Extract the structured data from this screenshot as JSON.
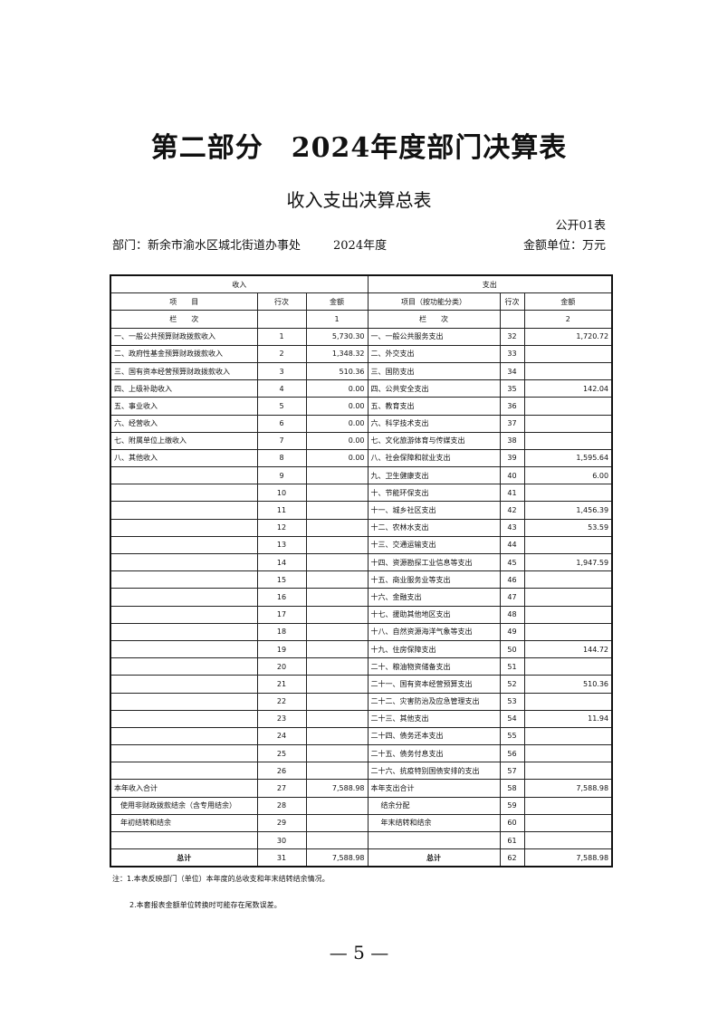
{
  "title": "第二部分　2024年度部门决算表",
  "subtitle": "收入支出决算总表",
  "form_no": "公开01表",
  "department": "部门：新余市渝水区城北街道办事处",
  "year": "2024年度",
  "unit": "金额单位：万元",
  "table": {
    "income_header": "收入",
    "expense_header": "支出",
    "col_item": "项　　目",
    "col_row": "行次",
    "col_amount": "金额",
    "col_item_func": "项目（按功能分类）",
    "lan_ci": "栏　　次",
    "col_no_1": "1",
    "col_no_2": "2",
    "rows": [
      {
        "in_item": "一、一般公共预算财政拨款收入",
        "in_no": "1",
        "in_amt": "5,730.30",
        "ex_item": "一、一般公共服务支出",
        "ex_no": "32",
        "ex_amt": "1,720.72"
      },
      {
        "in_item": "二、政府性基金预算财政拨款收入",
        "in_no": "2",
        "in_amt": "1,348.32",
        "ex_item": "二、外交支出",
        "ex_no": "33",
        "ex_amt": ""
      },
      {
        "in_item": "三、国有资本经营预算财政拨款收入",
        "in_no": "3",
        "in_amt": "510.36",
        "ex_item": "三、国防支出",
        "ex_no": "34",
        "ex_amt": ""
      },
      {
        "in_item": "四、上级补助收入",
        "in_no": "4",
        "in_amt": "0.00",
        "ex_item": "四、公共安全支出",
        "ex_no": "35",
        "ex_amt": "142.04"
      },
      {
        "in_item": "五、事业收入",
        "in_no": "5",
        "in_amt": "0.00",
        "ex_item": "五、教育支出",
        "ex_no": "36",
        "ex_amt": ""
      },
      {
        "in_item": "六、经营收入",
        "in_no": "6",
        "in_amt": "0.00",
        "ex_item": "六、科学技术支出",
        "ex_no": "37",
        "ex_amt": ""
      },
      {
        "in_item": "七、附属单位上缴收入",
        "in_no": "7",
        "in_amt": "0.00",
        "ex_item": "七、文化旅游体育与传媒支出",
        "ex_no": "38",
        "ex_amt": ""
      },
      {
        "in_item": "八、其他收入",
        "in_no": "8",
        "in_amt": "0.00",
        "ex_item": "八、社会保障和就业支出",
        "ex_no": "39",
        "ex_amt": "1,595.64"
      },
      {
        "in_item": "",
        "in_no": "9",
        "in_amt": "",
        "ex_item": "九、卫生健康支出",
        "ex_no": "40",
        "ex_amt": "6.00"
      },
      {
        "in_item": "",
        "in_no": "10",
        "in_amt": "",
        "ex_item": "十、节能环保支出",
        "ex_no": "41",
        "ex_amt": ""
      },
      {
        "in_item": "",
        "in_no": "11",
        "in_amt": "",
        "ex_item": "十一、城乡社区支出",
        "ex_no": "42",
        "ex_amt": "1,456.39"
      },
      {
        "in_item": "",
        "in_no": "12",
        "in_amt": "",
        "ex_item": "十二、农林水支出",
        "ex_no": "43",
        "ex_amt": "53.59"
      },
      {
        "in_item": "",
        "in_no": "13",
        "in_amt": "",
        "ex_item": "十三、交通运输支出",
        "ex_no": "44",
        "ex_amt": ""
      },
      {
        "in_item": "",
        "in_no": "14",
        "in_amt": "",
        "ex_item": "十四、资源勘探工业信息等支出",
        "ex_no": "45",
        "ex_amt": "1,947.59"
      },
      {
        "in_item": "",
        "in_no": "15",
        "in_amt": "",
        "ex_item": "十五、商业服务业等支出",
        "ex_no": "46",
        "ex_amt": ""
      },
      {
        "in_item": "",
        "in_no": "16",
        "in_amt": "",
        "ex_item": "十六、金融支出",
        "ex_no": "47",
        "ex_amt": ""
      },
      {
        "in_item": "",
        "in_no": "17",
        "in_amt": "",
        "ex_item": "十七、援助其他地区支出",
        "ex_no": "48",
        "ex_amt": ""
      },
      {
        "in_item": "",
        "in_no": "18",
        "in_amt": "",
        "ex_item": "十八、自然资源海洋气象等支出",
        "ex_no": "49",
        "ex_amt": ""
      },
      {
        "in_item": "",
        "in_no": "19",
        "in_amt": "",
        "ex_item": "十九、住房保障支出",
        "ex_no": "50",
        "ex_amt": "144.72"
      },
      {
        "in_item": "",
        "in_no": "20",
        "in_amt": "",
        "ex_item": "二十、粮油物资储备支出",
        "ex_no": "51",
        "ex_amt": ""
      },
      {
        "in_item": "",
        "in_no": "21",
        "in_amt": "",
        "ex_item": "二十一、国有资本经营预算支出",
        "ex_no": "52",
        "ex_amt": "510.36"
      },
      {
        "in_item": "",
        "in_no": "22",
        "in_amt": "",
        "ex_item": "二十二、灾害防治及应急管理支出",
        "ex_no": "53",
        "ex_amt": ""
      },
      {
        "in_item": "",
        "in_no": "23",
        "in_amt": "",
        "ex_item": "二十三、其他支出",
        "ex_no": "54",
        "ex_amt": "11.94"
      },
      {
        "in_item": "",
        "in_no": "24",
        "in_amt": "",
        "ex_item": "二十四、债务还本支出",
        "ex_no": "55",
        "ex_amt": ""
      },
      {
        "in_item": "",
        "in_no": "25",
        "in_amt": "",
        "ex_item": "二十五、债务付息支出",
        "ex_no": "56",
        "ex_amt": ""
      },
      {
        "in_item": "",
        "in_no": "26",
        "in_amt": "",
        "ex_item": "二十六、抗疫特别国债安排的支出",
        "ex_no": "57",
        "ex_amt": ""
      },
      {
        "in_item": "本年收入合计",
        "in_no": "27",
        "in_amt": "7,588.98",
        "ex_item": "本年支出合计",
        "ex_no": "58",
        "ex_amt": "7,588.98"
      },
      {
        "in_item": "使用非财政拨款结余（含专用结余）",
        "in_no": "28",
        "in_amt": "",
        "ex_item": "结余分配",
        "ex_no": "59",
        "ex_amt": "",
        "indent": true
      },
      {
        "in_item": "年初结转和结余",
        "in_no": "29",
        "in_amt": "",
        "ex_item": "年末结转和结余",
        "ex_no": "60",
        "ex_amt": "",
        "indent": true
      },
      {
        "in_item": "",
        "in_no": "30",
        "in_amt": "",
        "ex_item": "",
        "ex_no": "61",
        "ex_amt": ""
      },
      {
        "in_item": "总计",
        "in_no": "31",
        "in_amt": "7,588.98",
        "ex_item": "总计",
        "ex_no": "62",
        "ex_amt": "7,588.98",
        "total": true
      }
    ]
  },
  "notes": {
    "note1": "注：1.本表反映部门（单位）本年度的总收支和年末结转结余情况。",
    "note2": "2.本套报表金额单位转换时可能存在尾数误差。"
  },
  "page_number": "— 5 —"
}
